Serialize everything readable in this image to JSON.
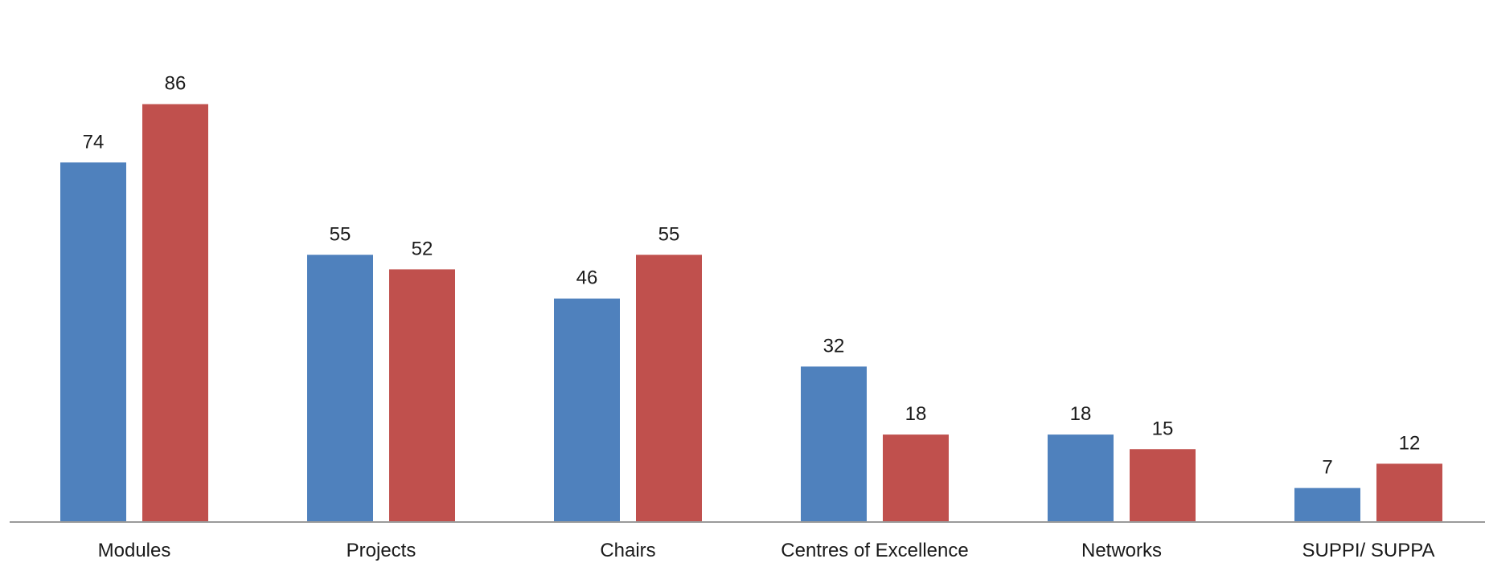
{
  "chart_data": {
    "type": "bar",
    "categories": [
      "Modules",
      "Projects",
      "Chairs",
      "Centres of Excellence",
      "Networks",
      "SUPPI/ SUPPA"
    ],
    "series": [
      {
        "values": [
          74,
          55,
          46,
          32,
          18,
          7
        ],
        "color": "#4F81BD"
      },
      {
        "values": [
          86,
          52,
          55,
          18,
          15,
          12
        ],
        "color": "#C0504D"
      }
    ],
    "ylim": [
      0,
      92
    ],
    "grid": false,
    "legend": "none"
  }
}
